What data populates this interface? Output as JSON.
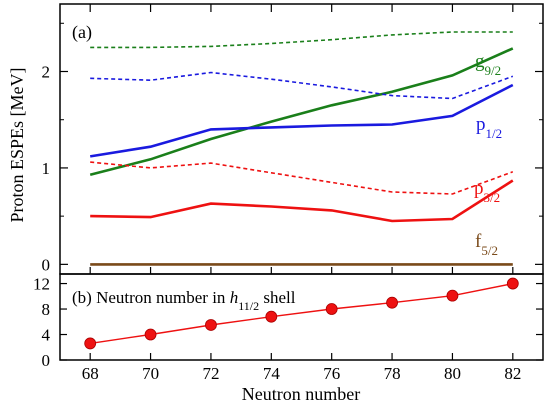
{
  "chart_data": [
    {
      "type": "line",
      "panel_label": "(a)",
      "ylabel": "Proton ESPEs [MeV]",
      "xlim": [
        67,
        83
      ],
      "ylim": [
        -0.1,
        2.7
      ],
      "y_ticks": [
        "0",
        "1",
        "2"
      ],
      "y_tick_values": [
        0,
        1,
        2
      ],
      "x": [
        68,
        70,
        72,
        74,
        76,
        78,
        80,
        82
      ],
      "series": [
        {
          "orbital": "g",
          "sub": "9/2",
          "color": "#1a7f1a",
          "solid": [
            0.93,
            1.09,
            1.3,
            1.48,
            1.65,
            1.79,
            1.96,
            2.24
          ],
          "dashed": [
            2.25,
            2.25,
            2.26,
            2.29,
            2.33,
            2.38,
            2.41,
            2.41
          ]
        },
        {
          "orbital": "p",
          "sub": "1/2",
          "color": "#1a1adf",
          "solid": [
            1.12,
            1.22,
            1.4,
            1.42,
            1.44,
            1.45,
            1.54,
            1.86
          ],
          "dashed": [
            1.93,
            1.91,
            1.99,
            1.92,
            1.84,
            1.75,
            1.72,
            1.95
          ]
        },
        {
          "orbital": "p",
          "sub": "3/2",
          "color": "#ee1111",
          "solid": [
            0.5,
            0.49,
            0.63,
            0.6,
            0.56,
            0.45,
            0.47,
            0.87
          ],
          "dashed": [
            1.06,
            1.0,
            1.05,
            0.95,
            0.85,
            0.75,
            0.73,
            0.96
          ]
        },
        {
          "orbital": "f",
          "sub": "5/2",
          "color": "#7a4a1a",
          "solid": [
            0,
            0,
            0,
            0,
            0,
            0,
            0,
            0
          ]
        }
      ]
    },
    {
      "type": "line",
      "title": "(b) Neutron number in h11/2 shell",
      "title_prefix": "(b) Neutron number in ",
      "title_symbol": "h",
      "title_sub": "11/2",
      "title_suffix": " shell",
      "xlabel": "Neutron number",
      "xlim": [
        67,
        83
      ],
      "ylim": [
        0,
        13.5
      ],
      "x_ticks": [
        "68",
        "70",
        "72",
        "74",
        "76",
        "78",
        "80",
        "82"
      ],
      "y_ticks": [
        "0",
        "4",
        "8",
        "12"
      ],
      "y_tick_values": [
        0,
        4,
        8,
        12
      ],
      "color": "#ee1111",
      "x": [
        68,
        70,
        72,
        74,
        76,
        78,
        80,
        82
      ],
      "values": [
        2.6,
        4.0,
        5.5,
        6.8,
        8.0,
        9.0,
        10.1,
        12.0
      ]
    }
  ]
}
